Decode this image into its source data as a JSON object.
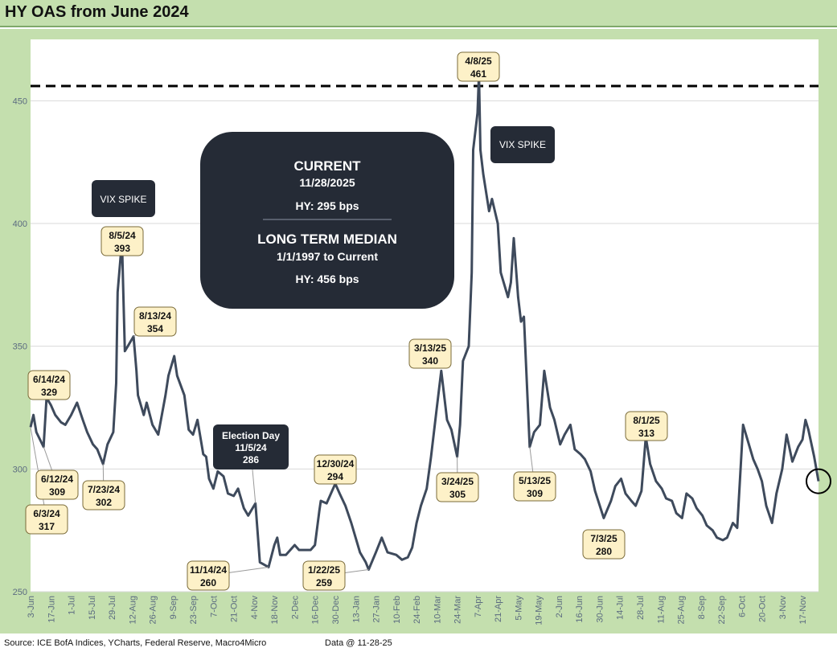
{
  "title": "HY OAS from June 2024",
  "footer": {
    "source": "Source: ICE BofA Indices, YCharts, Federal Reserve, Macro4Micro",
    "data_ref": "Data @ 11-28-25"
  },
  "colors": {
    "frame": "#c4dfae",
    "line": "#3e4a5c",
    "callout_fill": "#fdf1c8",
    "dark_box": "#252b36"
  },
  "chart_data": {
    "type": "line",
    "title": "HY OAS from June 2024",
    "x_start": "2024-06-03",
    "x_end": "2025-11-28",
    "ylim": [
      250,
      475
    ],
    "yticks": [
      250,
      300,
      350,
      400,
      450
    ],
    "grid": "horizontal",
    "xtick_labels": [
      {
        "date": "2024-06-03",
        "label": "3-Jun"
      },
      {
        "date": "2024-06-17",
        "label": "17-Jun"
      },
      {
        "date": "2024-07-01",
        "label": "1-Jul"
      },
      {
        "date": "2024-07-15",
        "label": "15-Jul"
      },
      {
        "date": "2024-07-29",
        "label": "29-Jul"
      },
      {
        "date": "2024-08-12",
        "label": "12-Aug"
      },
      {
        "date": "2024-08-26",
        "label": "26-Aug"
      },
      {
        "date": "2024-09-09",
        "label": "9-Sep"
      },
      {
        "date": "2024-09-23",
        "label": "23-Sep"
      },
      {
        "date": "2024-10-07",
        "label": "7-Oct"
      },
      {
        "date": "2024-10-21",
        "label": "21-Oct"
      },
      {
        "date": "2024-11-04",
        "label": "4-Nov"
      },
      {
        "date": "2024-11-18",
        "label": "18-Nov"
      },
      {
        "date": "2024-12-02",
        "label": "2-Dec"
      },
      {
        "date": "2024-12-16",
        "label": "16-Dec"
      },
      {
        "date": "2024-12-30",
        "label": "30-Dec"
      },
      {
        "date": "2025-01-13",
        "label": "13-Jan"
      },
      {
        "date": "2025-01-27",
        "label": "27-Jan"
      },
      {
        "date": "2025-02-10",
        "label": "10-Feb"
      },
      {
        "date": "2025-02-24",
        "label": "24-Feb"
      },
      {
        "date": "2025-03-10",
        "label": "10-Mar"
      },
      {
        "date": "2025-03-24",
        "label": "24-Mar"
      },
      {
        "date": "2025-04-07",
        "label": "7-Apr"
      },
      {
        "date": "2025-04-21",
        "label": "21-Apr"
      },
      {
        "date": "2025-05-05",
        "label": "5-May"
      },
      {
        "date": "2025-05-19",
        "label": "19-May"
      },
      {
        "date": "2025-06-02",
        "label": "2-Jun"
      },
      {
        "date": "2025-06-16",
        "label": "16-Jun"
      },
      {
        "date": "2025-06-30",
        "label": "30-Jun"
      },
      {
        "date": "2025-07-14",
        "label": "14-Jul"
      },
      {
        "date": "2025-07-28",
        "label": "28-Jul"
      },
      {
        "date": "2025-08-11",
        "label": "11-Aug"
      },
      {
        "date": "2025-08-25",
        "label": "25-Aug"
      },
      {
        "date": "2025-09-08",
        "label": "8-Sep"
      },
      {
        "date": "2025-09-22",
        "label": "22-Sep"
      },
      {
        "date": "2025-10-06",
        "label": "6-Oct"
      },
      {
        "date": "2025-10-20",
        "label": "20-Oct"
      },
      {
        "date": "2025-11-03",
        "label": "3-Nov"
      },
      {
        "date": "2025-11-17",
        "label": "17-Nov"
      }
    ],
    "series": [
      {
        "points": [
          [
            "2024-06-03",
            317
          ],
          [
            "2024-06-05",
            322
          ],
          [
            "2024-06-07",
            315
          ],
          [
            "2024-06-12",
            309
          ],
          [
            "2024-06-14",
            329
          ],
          [
            "2024-06-17",
            326
          ],
          [
            "2024-06-20",
            322
          ],
          [
            "2024-06-24",
            319
          ],
          [
            "2024-06-27",
            318
          ],
          [
            "2024-07-01",
            322
          ],
          [
            "2024-07-05",
            327
          ],
          [
            "2024-07-09",
            320
          ],
          [
            "2024-07-12",
            315
          ],
          [
            "2024-07-16",
            310
          ],
          [
            "2024-07-19",
            308
          ],
          [
            "2024-07-23",
            302
          ],
          [
            "2024-07-26",
            310
          ],
          [
            "2024-07-30",
            315
          ],
          [
            "2024-08-01",
            335
          ],
          [
            "2024-08-02",
            372
          ],
          [
            "2024-08-05",
            393
          ],
          [
            "2024-08-06",
            370
          ],
          [
            "2024-08-07",
            348
          ],
          [
            "2024-08-09",
            350
          ],
          [
            "2024-08-13",
            354
          ],
          [
            "2024-08-15",
            340
          ],
          [
            "2024-08-16",
            330
          ],
          [
            "2024-08-20",
            322
          ],
          [
            "2024-08-22",
            327
          ],
          [
            "2024-08-26",
            318
          ],
          [
            "2024-08-30",
            314
          ],
          [
            "2024-09-04",
            330
          ],
          [
            "2024-09-06",
            338
          ],
          [
            "2024-09-09",
            344
          ],
          [
            "2024-09-10",
            346
          ],
          [
            "2024-09-12",
            338
          ],
          [
            "2024-09-17",
            330
          ],
          [
            "2024-09-20",
            316
          ],
          [
            "2024-09-23",
            314
          ],
          [
            "2024-09-26",
            320
          ],
          [
            "2024-09-30",
            306
          ],
          [
            "2024-10-02",
            305
          ],
          [
            "2024-10-04",
            296
          ],
          [
            "2024-10-07",
            292
          ],
          [
            "2024-10-10",
            299
          ],
          [
            "2024-10-14",
            297
          ],
          [
            "2024-10-17",
            290
          ],
          [
            "2024-10-21",
            289
          ],
          [
            "2024-10-24",
            292
          ],
          [
            "2024-10-28",
            284
          ],
          [
            "2024-10-31",
            281
          ],
          [
            "2024-11-05",
            286
          ],
          [
            "2024-11-08",
            262
          ],
          [
            "2024-11-11",
            261
          ],
          [
            "2024-11-14",
            260
          ],
          [
            "2024-11-18",
            269
          ],
          [
            "2024-11-20",
            272
          ],
          [
            "2024-11-22",
            265
          ],
          [
            "2024-11-26",
            265
          ],
          [
            "2024-12-02",
            269
          ],
          [
            "2024-12-05",
            267
          ],
          [
            "2024-12-09",
            267
          ],
          [
            "2024-12-13",
            267
          ],
          [
            "2024-12-16",
            269
          ],
          [
            "2024-12-19",
            283
          ],
          [
            "2024-12-20",
            287
          ],
          [
            "2024-12-24",
            286
          ],
          [
            "2024-12-27",
            290
          ],
          [
            "2024-12-30",
            294
          ],
          [
            "2025-01-02",
            290
          ],
          [
            "2025-01-06",
            285
          ],
          [
            "2025-01-10",
            278
          ],
          [
            "2025-01-13",
            272
          ],
          [
            "2025-01-16",
            266
          ],
          [
            "2025-01-20",
            262
          ],
          [
            "2025-01-22",
            259
          ],
          [
            "2025-01-27",
            266
          ],
          [
            "2025-01-31",
            272
          ],
          [
            "2025-02-04",
            266
          ],
          [
            "2025-02-10",
            265
          ],
          [
            "2025-02-14",
            263
          ],
          [
            "2025-02-18",
            264
          ],
          [
            "2025-02-21",
            268
          ],
          [
            "2025-02-24",
            278
          ],
          [
            "2025-02-27",
            285
          ],
          [
            "2025-03-03",
            292
          ],
          [
            "2025-03-06",
            305
          ],
          [
            "2025-03-10",
            325
          ],
          [
            "2025-03-13",
            340
          ],
          [
            "2025-03-17",
            320
          ],
          [
            "2025-03-20",
            316
          ],
          [
            "2025-03-24",
            305
          ],
          [
            "2025-03-26",
            318
          ],
          [
            "2025-03-28",
            344
          ],
          [
            "2025-04-01",
            350
          ],
          [
            "2025-04-03",
            380
          ],
          [
            "2025-04-04",
            430
          ],
          [
            "2025-04-07",
            445
          ],
          [
            "2025-04-08",
            461
          ],
          [
            "2025-04-09",
            430
          ],
          [
            "2025-04-11",
            420
          ],
          [
            "2025-04-15",
            405
          ],
          [
            "2025-04-17",
            410
          ],
          [
            "2025-04-21",
            400
          ],
          [
            "2025-04-23",
            380
          ],
          [
            "2025-04-28",
            370
          ],
          [
            "2025-04-30",
            376
          ],
          [
            "2025-05-02",
            394
          ],
          [
            "2025-05-05",
            370
          ],
          [
            "2025-05-07",
            360
          ],
          [
            "2025-05-09",
            362
          ],
          [
            "2025-05-13",
            309
          ],
          [
            "2025-05-16",
            315
          ],
          [
            "2025-05-20",
            318
          ],
          [
            "2025-05-23",
            340
          ],
          [
            "2025-05-27",
            325
          ],
          [
            "2025-05-30",
            320
          ],
          [
            "2025-06-03",
            310
          ],
          [
            "2025-06-06",
            314
          ],
          [
            "2025-06-10",
            318
          ],
          [
            "2025-06-13",
            308
          ],
          [
            "2025-06-17",
            306
          ],
          [
            "2025-06-20",
            304
          ],
          [
            "2025-06-24",
            299
          ],
          [
            "2025-06-27",
            291
          ],
          [
            "2025-07-03",
            280
          ],
          [
            "2025-07-08",
            287
          ],
          [
            "2025-07-11",
            293
          ],
          [
            "2025-07-15",
            296
          ],
          [
            "2025-07-18",
            290
          ],
          [
            "2025-07-22",
            287
          ],
          [
            "2025-07-25",
            285
          ],
          [
            "2025-07-29",
            291
          ],
          [
            "2025-08-01",
            313
          ],
          [
            "2025-08-04",
            302
          ],
          [
            "2025-08-08",
            295
          ],
          [
            "2025-08-12",
            292
          ],
          [
            "2025-08-15",
            288
          ],
          [
            "2025-08-19",
            287
          ],
          [
            "2025-08-22",
            282
          ],
          [
            "2025-08-26",
            280
          ],
          [
            "2025-08-29",
            290
          ],
          [
            "2025-09-02",
            288
          ],
          [
            "2025-09-05",
            284
          ],
          [
            "2025-09-09",
            281
          ],
          [
            "2025-09-12",
            277
          ],
          [
            "2025-09-16",
            275
          ],
          [
            "2025-09-19",
            272
          ],
          [
            "2025-09-23",
            271
          ],
          [
            "2025-09-26",
            272
          ],
          [
            "2025-09-30",
            278
          ],
          [
            "2025-10-03",
            276
          ],
          [
            "2025-10-07",
            318
          ],
          [
            "2025-10-10",
            312
          ],
          [
            "2025-10-14",
            304
          ],
          [
            "2025-10-17",
            300
          ],
          [
            "2025-10-20",
            295
          ],
          [
            "2025-10-23",
            285
          ],
          [
            "2025-10-27",
            278
          ],
          [
            "2025-10-30",
            290
          ],
          [
            "2025-11-03",
            300
          ],
          [
            "2025-11-06",
            314
          ],
          [
            "2025-11-10",
            303
          ],
          [
            "2025-11-14",
            309
          ],
          [
            "2025-11-17",
            312
          ],
          [
            "2025-11-19",
            320
          ],
          [
            "2025-11-21",
            316
          ],
          [
            "2025-11-25",
            305
          ],
          [
            "2025-11-28",
            295
          ]
        ]
      }
    ],
    "reference_line": {
      "value": 456,
      "style": "dashed"
    },
    "last_point_marker": {
      "date": "2025-11-28",
      "value": 295,
      "shape": "circle"
    },
    "callouts": [
      {
        "date": "2024-06-03",
        "value": 317,
        "line1": "6/3/24",
        "line2": "317"
      },
      {
        "date": "2024-06-12",
        "value": 309,
        "line1": "6/12/24",
        "line2": "309"
      },
      {
        "date": "2024-06-14",
        "value": 329,
        "line1": "6/14/24",
        "line2": "329"
      },
      {
        "date": "2024-07-23",
        "value": 302,
        "line1": "7/23/24",
        "line2": "302"
      },
      {
        "date": "2024-08-05",
        "value": 393,
        "line1": "8/5/24",
        "line2": "393"
      },
      {
        "date": "2024-08-13",
        "value": 354,
        "line1": "8/13/24",
        "line2": "354"
      },
      {
        "date": "2024-11-14",
        "value": 260,
        "line1": "11/14/24",
        "line2": "260"
      },
      {
        "date": "2024-12-30",
        "value": 294,
        "line1": "12/30/24",
        "line2": "294"
      },
      {
        "date": "2025-01-22",
        "value": 259,
        "line1": "1/22/25",
        "line2": "259"
      },
      {
        "date": "2025-03-13",
        "value": 340,
        "line1": "3/13/25",
        "line2": "340"
      },
      {
        "date": "2025-03-24",
        "value": 305,
        "line1": "3/24/25",
        "line2": "305"
      },
      {
        "date": "2025-04-08",
        "value": 461,
        "line1": "4/8/25",
        "line2": "461"
      },
      {
        "date": "2025-05-13",
        "value": 309,
        "line1": "5/13/25",
        "line2": "309"
      },
      {
        "date": "2025-07-03",
        "value": 280,
        "line1": "7/3/25",
        "line2": "280"
      },
      {
        "date": "2025-08-01",
        "value": 313,
        "line1": "8/1/25",
        "line2": "313"
      }
    ],
    "dark_labels": [
      {
        "text": "VIX SPIKE"
      },
      {
        "text": "VIX SPIKE"
      },
      {
        "lines": [
          "Election Day",
          "11/5/24",
          "286"
        ],
        "date": "2024-11-05",
        "value": 286
      }
    ],
    "info_box": {
      "current_title": "CURRENT",
      "current_date": "11/28/2025",
      "current_value": "HY:   295 bps",
      "median_title": "LONG TERM MEDIAN",
      "median_period": "1/1/1997 to Current",
      "median_value": "HY: 456 bps"
    }
  }
}
